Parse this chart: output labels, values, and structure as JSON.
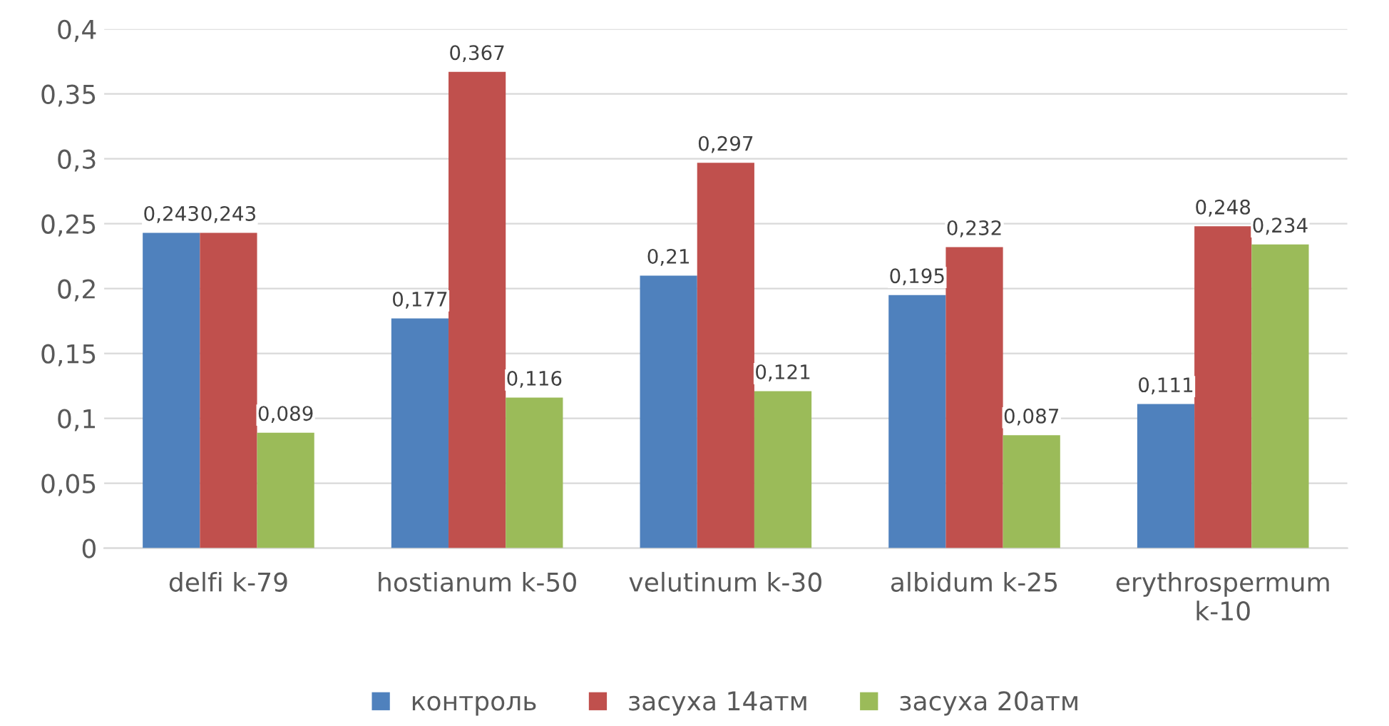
{
  "chart_data": {
    "type": "bar",
    "categories": [
      "delfi k-79",
      "hostianum k-50",
      "velutinum k-30",
      "albidum k-25",
      "erythrospermum\nk-10"
    ],
    "series": [
      {
        "name": "контроль",
        "color": "#4f81bd",
        "values": [
          0.243,
          0.177,
          0.21,
          0.195,
          0.111
        ],
        "value_labels": [
          "0,243",
          "0,177",
          "0,21",
          "0,195",
          "0,111"
        ]
      },
      {
        "name": "засуха 14атм",
        "color": "#c0504d",
        "values": [
          0.243,
          0.367,
          0.297,
          0.232,
          0.248
        ],
        "value_labels": [
          "0,243",
          "0,367",
          "0,297",
          "0,232",
          "0,248"
        ]
      },
      {
        "name": "засуха 20атм",
        "color": "#9bbb59",
        "values": [
          0.089,
          0.116,
          0.121,
          0.087,
          0.234
        ],
        "value_labels": [
          "0,089",
          "0,116",
          "0,121",
          "0,087",
          "0,234"
        ]
      }
    ],
    "ylim": [
      0,
      0.4
    ],
    "yticks": [
      {
        "value": 0,
        "label": "0"
      },
      {
        "value": 0.05,
        "label": "0,05"
      },
      {
        "value": 0.1,
        "label": "0,1"
      },
      {
        "value": 0.15,
        "label": "0,15"
      },
      {
        "value": 0.2,
        "label": "0,2"
      },
      {
        "value": 0.25,
        "label": "0,25"
      },
      {
        "value": 0.3,
        "label": "0,3"
      },
      {
        "value": 0.35,
        "label": "0,35"
      },
      {
        "value": 0.4,
        "label": "0,4"
      }
    ],
    "grid": "y",
    "legend": "bottom"
  }
}
